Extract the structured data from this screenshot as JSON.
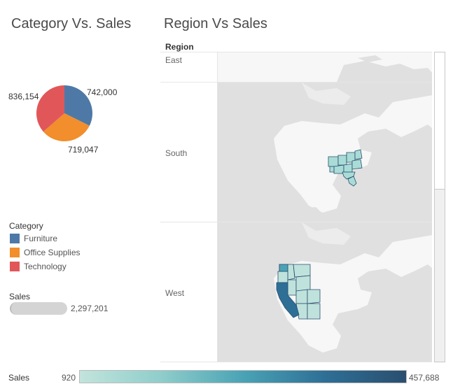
{
  "category_panel": {
    "title": "Category Vs. Sales",
    "pie_labels": {
      "technology": "836,154",
      "furniture": "742,000",
      "office_supplies": "719,047"
    }
  },
  "region_panel": {
    "title": "Region Vs Sales",
    "header": "Region",
    "rows": [
      "East",
      "South",
      "West"
    ]
  },
  "category_legend": {
    "title": "Category",
    "items": [
      "Furniture",
      "Office Supplies",
      "Technology"
    ]
  },
  "size_legend": {
    "title": "Sales",
    "value": "2,297,201"
  },
  "color_legend": {
    "title": "Sales",
    "min": "920",
    "max": "457,688"
  },
  "colors": {
    "furniture": "#4e79a7",
    "office_supplies": "#f28e2b",
    "technology": "#e15759",
    "land": "#e0e0e0",
    "water": "#f7f7f7"
  },
  "chart_data": {
    "type": "pie",
    "categories": [
      "Furniture",
      "Office Supplies",
      "Technology"
    ],
    "values": [
      742000,
      719047,
      836154
    ]
  }
}
